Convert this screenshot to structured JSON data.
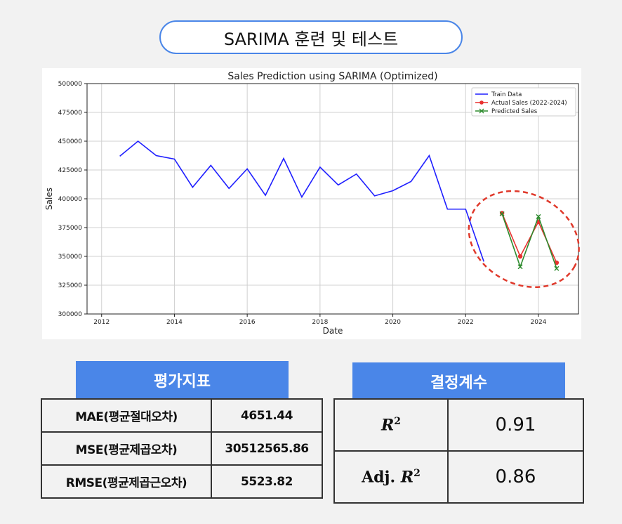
{
  "header_title": "SARIMA 훈련 및 테스트",
  "chart_data": {
    "type": "line",
    "title": "Sales Prediction using SARIMA (Optimized)",
    "xlabel": "Date",
    "ylabel": "Sales",
    "xlim": [
      2011.6,
      2025.1
    ],
    "ylim": [
      300000,
      500000
    ],
    "xticks": [
      2012,
      2014,
      2016,
      2018,
      2020,
      2022,
      2024
    ],
    "yticks": [
      300000,
      325000,
      350000,
      375000,
      400000,
      425000,
      450000,
      475000,
      500000
    ],
    "grid": true,
    "legend_position": "top-right",
    "series": [
      {
        "name": "Train Data",
        "color": "#1f1fff",
        "marker": "none",
        "x": [
          2012.5,
          2013.0,
          2013.5,
          2014.0,
          2014.5,
          2015.0,
          2015.5,
          2016.0,
          2016.5,
          2017.0,
          2017.5,
          2018.0,
          2018.5,
          2019.0,
          2019.5,
          2020.0,
          2020.5,
          2021.0,
          2021.5,
          2022.0,
          2022.5
        ],
        "values": [
          437000,
          450000,
          437500,
          434500,
          410000,
          429000,
          409000,
          426000,
          403000,
          435000,
          401500,
          427500,
          412000,
          421500,
          402500,
          407000,
          415000,
          437500,
          391000,
          391000,
          345500
        ]
      },
      {
        "name": "Actual Sales (2022-2024)",
        "color": "#e8312f",
        "marker": "circle",
        "x": [
          2023.0,
          2023.5,
          2024.0,
          2024.5
        ],
        "values": [
          387500,
          350000,
          380000,
          344500
        ]
      },
      {
        "name": "Predicted Sales",
        "color": "#2e8b2e",
        "marker": "x",
        "x": [
          2023.0,
          2023.5,
          2024.0,
          2024.5
        ],
        "values": [
          387000,
          341000,
          384500,
          339500
        ]
      }
    ],
    "annotation_color": "#e0392b"
  },
  "metrics": {
    "header": "평가지표",
    "rows": [
      {
        "label": "MAE(평균절대오차)",
        "value": "4651.44"
      },
      {
        "label": "MSE(평균제곱오차)",
        "value": "30512565.86"
      },
      {
        "label": "RMSE(평균제곱근오차)",
        "value": "5523.82"
      }
    ]
  },
  "coefficient": {
    "header": "결정계수",
    "r2_symbol": "R",
    "r2_exponent": "2",
    "r2_value": "0.91",
    "adj_prefix": "Adj.",
    "adj_symbol": "R",
    "adj_exponent": "2",
    "adj_value": "0.86"
  },
  "colors": {
    "accent": "#4a86e8",
    "background": "#f2f2f2"
  }
}
